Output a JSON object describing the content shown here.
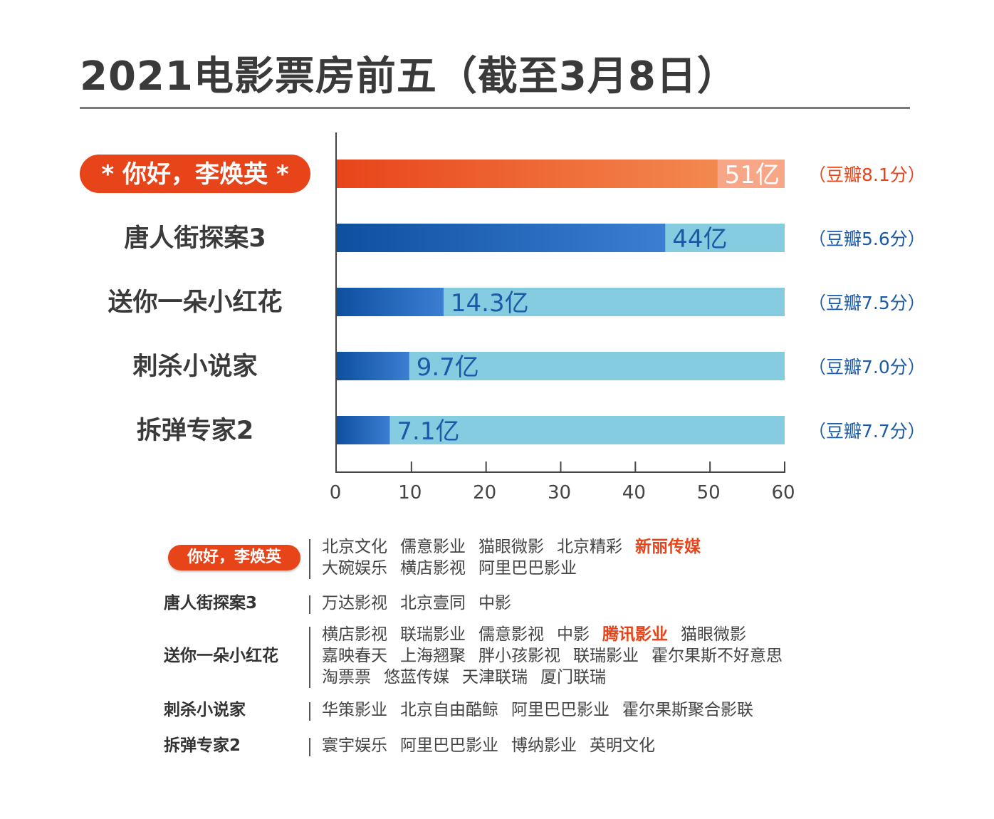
{
  "title": "2021电影票房前五（截至3月8日）",
  "colors": {
    "highlight_bar_start": "#e8441a",
    "highlight_bar_end": "#f3894f",
    "highlight_bar_bg": "#f7a687",
    "blue_bar_start": "#0e4fa0",
    "blue_bar_end": "#3c7ed2",
    "blue_bar_bg": "#86cce0",
    "highlight_text": "#e8441a",
    "blue_text": "#1b5aa6"
  },
  "chart_data": {
    "type": "bar",
    "orientation": "horizontal",
    "categories": [
      "你好，李焕英",
      "唐人街探案3",
      "送你一朵小红花",
      "刺杀小说家",
      "拆弹专家2"
    ],
    "values": [
      51,
      44,
      14.3,
      9.7,
      7.1
    ],
    "value_labels": [
      "51亿",
      "44亿",
      "14.3亿",
      "9.7亿",
      "7.1亿"
    ],
    "douban_labels": [
      "（豆瓣8.1分）",
      "（豆瓣5.6分）",
      "（豆瓣7.5分）",
      "（豆瓣7.0分）",
      "（豆瓣7.7分）"
    ],
    "highlight_category": "你好，李焕英",
    "xlim": [
      0,
      60
    ],
    "xticks": [
      0,
      10,
      20,
      30,
      40,
      50,
      60
    ],
    "grid": false
  },
  "producers": [
    {
      "movie": "你好，李焕英",
      "highlight": true,
      "lines": [
        [
          {
            "name": "北京文化"
          },
          {
            "name": "儒意影业"
          },
          {
            "name": "猫眼微影"
          },
          {
            "name": "北京精彩"
          },
          {
            "name": "新丽传媒",
            "hl": true
          }
        ],
        [
          {
            "name": "大碗娱乐"
          },
          {
            "name": "横店影视"
          },
          {
            "name": "阿里巴巴影业"
          }
        ]
      ]
    },
    {
      "movie": "唐人街探案3",
      "lines": [
        [
          {
            "name": "万达影视"
          },
          {
            "name": "北京壹同"
          },
          {
            "name": "中影"
          }
        ]
      ]
    },
    {
      "movie": "送你一朵小红花",
      "lines": [
        [
          {
            "name": "横店影视"
          },
          {
            "name": "联瑞影业"
          },
          {
            "name": "儒意影视"
          },
          {
            "name": "中影"
          },
          {
            "name": "腾讯影业",
            "hl": true
          },
          {
            "name": "猫眼微影"
          }
        ],
        [
          {
            "name": "嘉映春天"
          },
          {
            "name": "上海翘聚"
          },
          {
            "name": "胖小孩影视"
          },
          {
            "name": "联瑞影业"
          },
          {
            "name": "霍尔果斯不好意思"
          }
        ],
        [
          {
            "name": "淘票票"
          },
          {
            "name": "悠蓝传媒"
          },
          {
            "name": "天津联瑞"
          },
          {
            "name": "厦门联瑞"
          }
        ]
      ]
    },
    {
      "movie": "刺杀小说家",
      "lines": [
        [
          {
            "name": "华策影业"
          },
          {
            "name": "北京自由酷鲸"
          },
          {
            "name": "阿里巴巴影业"
          },
          {
            "name": "霍尔果斯聚合影联"
          }
        ]
      ]
    },
    {
      "movie": "拆弹专家2",
      "lines": [
        [
          {
            "name": "寰宇娱乐"
          },
          {
            "name": "阿里巴巴影业"
          },
          {
            "name": "博纳影业"
          },
          {
            "name": "英明文化"
          }
        ]
      ]
    }
  ]
}
